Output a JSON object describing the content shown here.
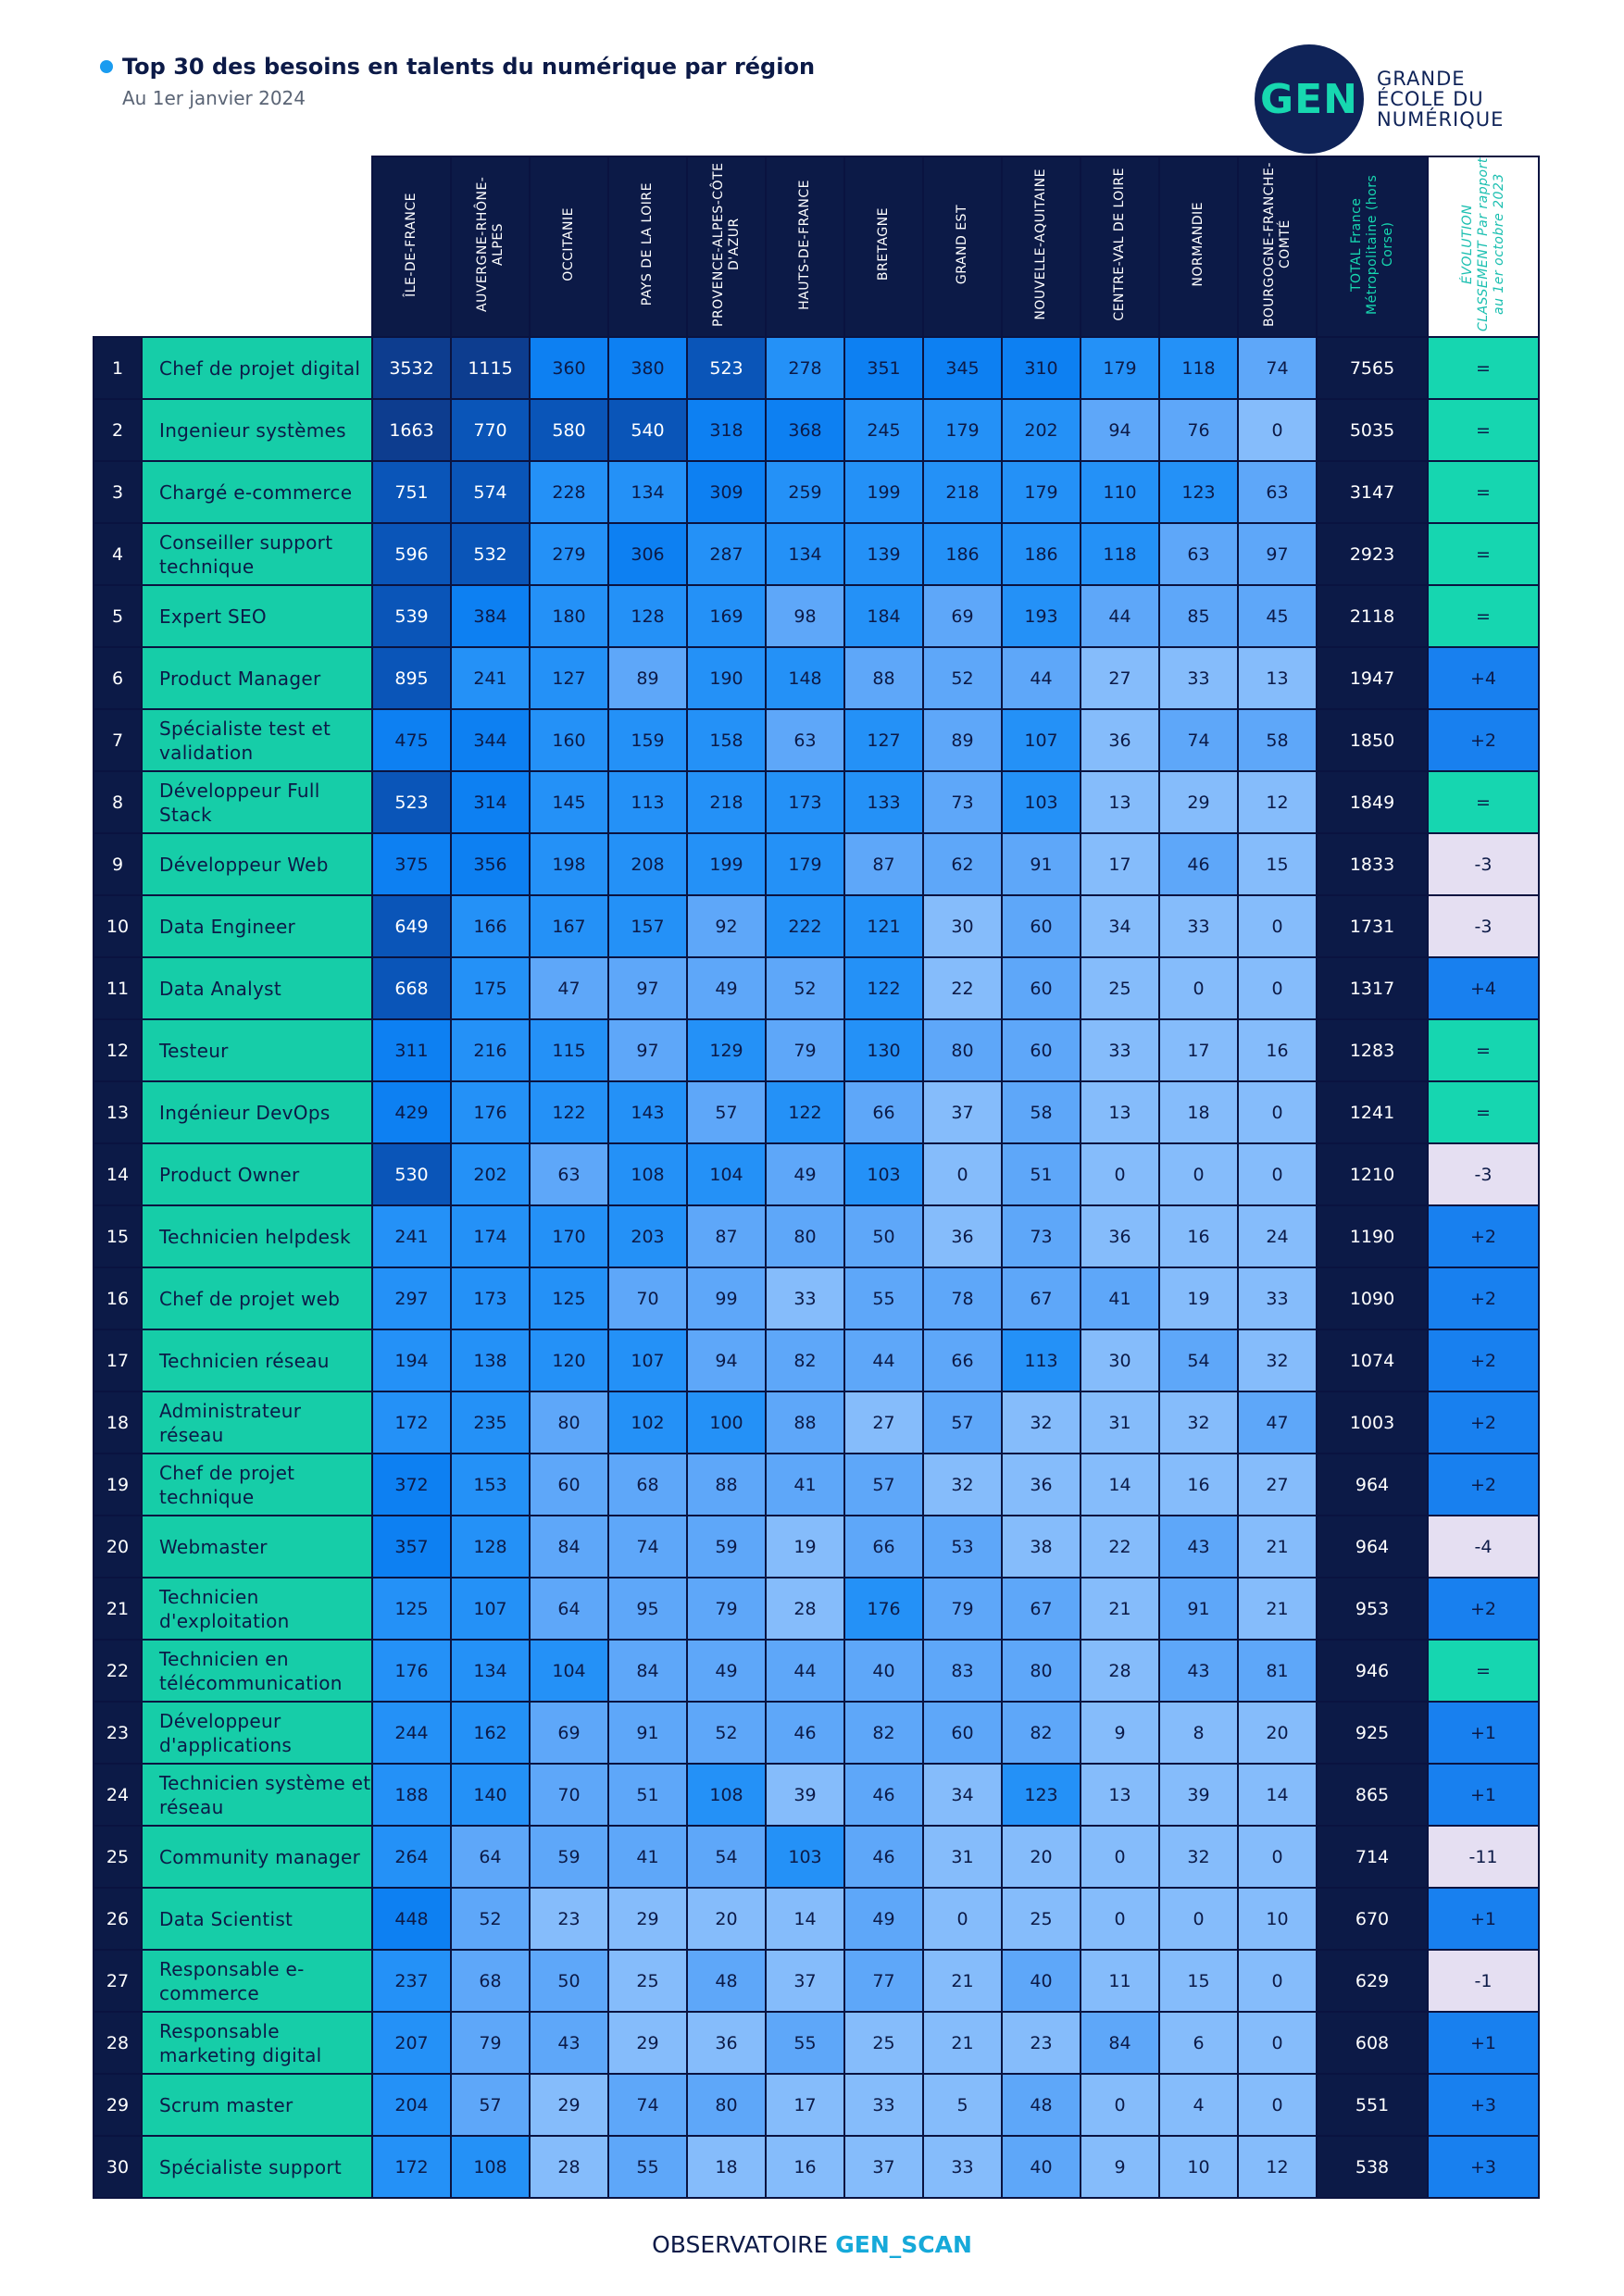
{
  "title": "Top 30 des besoins en talents du numérique par région",
  "subtitle": "Au 1er janvier 2024",
  "logo": {
    "mark": "GEN",
    "line1": "GRANDE",
    "line2": "ÉCOLE DU",
    "line3": "NUMÉRIQUE"
  },
  "columns": [
    "ÎLE-DE-FRANCE",
    "AUVERGNE-RHÔNE-ALPES",
    "OCCITANIE",
    "PAYS DE LA LOIRE",
    "PROVENCE-ALPES-CÔTE D'AZUR",
    "HAUTS-DE-FRANCE",
    "BRETAGNE",
    "GRAND EST",
    "NOUVELLE-AQUITAINE",
    "CENTRE-VAL DE LOIRE",
    "NORMANDIE",
    "BOURGOGNE-FRANCHE-COMTÉ"
  ],
  "total_header": "TOTAL France Métropolitaine (hors Corse)",
  "evolution_header": "ÉVOLUTION CLASSEMENT Par rapport au 1er octobre 2023",
  "rows": [
    {
      "rank": "1",
      "job": "Chef de projet digital",
      "values": [
        3532,
        1115,
        360,
        380,
        523,
        278,
        351,
        345,
        310,
        179,
        118,
        74
      ],
      "total": "7565",
      "evolution": "="
    },
    {
      "rank": "2",
      "job": "Ingenieur systèmes",
      "values": [
        1663,
        770,
        580,
        540,
        318,
        368,
        245,
        179,
        202,
        94,
        76,
        0
      ],
      "total": "5035",
      "evolution": "="
    },
    {
      "rank": "3",
      "job": "Chargé e-commerce",
      "values": [
        751,
        574,
        228,
        134,
        309,
        259,
        199,
        218,
        179,
        110,
        123,
        63
      ],
      "total": "3147",
      "evolution": "="
    },
    {
      "rank": "4",
      "job": "Conseiller support technique",
      "values": [
        596,
        532,
        279,
        306,
        287,
        134,
        139,
        186,
        186,
        118,
        63,
        97
      ],
      "total": "2923",
      "evolution": "="
    },
    {
      "rank": "5",
      "job": "Expert SEO",
      "values": [
        539,
        384,
        180,
        128,
        169,
        98,
        184,
        69,
        193,
        44,
        85,
        45
      ],
      "total": "2118",
      "evolution": "="
    },
    {
      "rank": "6",
      "job": "Product Manager",
      "values": [
        895,
        241,
        127,
        89,
        190,
        148,
        88,
        52,
        44,
        27,
        33,
        13
      ],
      "total": "1947",
      "evolution": "+4"
    },
    {
      "rank": "7",
      "job": "Spécialiste test et validation",
      "values": [
        475,
        344,
        160,
        159,
        158,
        63,
        127,
        89,
        107,
        36,
        74,
        58
      ],
      "total": "1850",
      "evolution": "+2"
    },
    {
      "rank": "8",
      "job": "Développeur Full Stack",
      "values": [
        523,
        314,
        145,
        113,
        218,
        173,
        133,
        73,
        103,
        13,
        29,
        12
      ],
      "total": "1849",
      "evolution": "="
    },
    {
      "rank": "9",
      "job": "Développeur Web",
      "values": [
        375,
        356,
        198,
        208,
        199,
        179,
        87,
        62,
        91,
        17,
        46,
        15
      ],
      "total": "1833",
      "evolution": "-3"
    },
    {
      "rank": "10",
      "job": "Data Engineer",
      "values": [
        649,
        166,
        167,
        157,
        92,
        222,
        121,
        30,
        60,
        34,
        33,
        0
      ],
      "total": "1731",
      "evolution": "-3"
    },
    {
      "rank": "11",
      "job": "Data Analyst",
      "values": [
        668,
        175,
        47,
        97,
        49,
        52,
        122,
        22,
        60,
        25,
        0,
        0
      ],
      "total": "1317",
      "evolution": "+4"
    },
    {
      "rank": "12",
      "job": "Testeur",
      "values": [
        311,
        216,
        115,
        97,
        129,
        79,
        130,
        80,
        60,
        33,
        17,
        16
      ],
      "total": "1283",
      "evolution": "="
    },
    {
      "rank": "13",
      "job": "Ingénieur DevOps",
      "values": [
        429,
        176,
        122,
        143,
        57,
        122,
        66,
        37,
        58,
        13,
        18,
        0
      ],
      "total": "1241",
      "evolution": "="
    },
    {
      "rank": "14",
      "job": "Product Owner",
      "values": [
        530,
        202,
        63,
        108,
        104,
        49,
        103,
        0,
        51,
        0,
        0,
        0
      ],
      "total": "1210",
      "evolution": "-3"
    },
    {
      "rank": "15",
      "job": "Technicien helpdesk",
      "values": [
        241,
        174,
        170,
        203,
        87,
        80,
        50,
        36,
        73,
        36,
        16,
        24
      ],
      "total": "1190",
      "evolution": "+2"
    },
    {
      "rank": "16",
      "job": "Chef de projet web",
      "values": [
        297,
        173,
        125,
        70,
        99,
        33,
        55,
        78,
        67,
        41,
        19,
        33
      ],
      "total": "1090",
      "evolution": "+2"
    },
    {
      "rank": "17",
      "job": "Technicien réseau",
      "values": [
        194,
        138,
        120,
        107,
        94,
        82,
        44,
        66,
        113,
        30,
        54,
        32
      ],
      "total": "1074",
      "evolution": "+2"
    },
    {
      "rank": "18",
      "job": "Administrateur réseau",
      "values": [
        172,
        235,
        80,
        102,
        100,
        88,
        27,
        57,
        32,
        31,
        32,
        47
      ],
      "total": "1003",
      "evolution": "+2"
    },
    {
      "rank": "19",
      "job": "Chef de projet technique",
      "values": [
        372,
        153,
        60,
        68,
        88,
        41,
        57,
        32,
        36,
        14,
        16,
        27
      ],
      "total": "964",
      "evolution": "+2"
    },
    {
      "rank": "20",
      "job": "Webmaster",
      "values": [
        357,
        128,
        84,
        74,
        59,
        19,
        66,
        53,
        38,
        22,
        43,
        21
      ],
      "total": "964",
      "evolution": "-4"
    },
    {
      "rank": "21",
      "job": "Technicien d'exploitation",
      "values": [
        125,
        107,
        64,
        95,
        79,
        28,
        176,
        79,
        67,
        21,
        91,
        21
      ],
      "total": "953",
      "evolution": "+2"
    },
    {
      "rank": "22",
      "job": "Technicien en télécommunication",
      "values": [
        176,
        134,
        104,
        84,
        49,
        44,
        40,
        83,
        80,
        28,
        43,
        81
      ],
      "total": "946",
      "evolution": "="
    },
    {
      "rank": "23",
      "job": "Développeur d'applications",
      "values": [
        244,
        162,
        69,
        91,
        52,
        46,
        82,
        60,
        82,
        9,
        8,
        20
      ],
      "total": "925",
      "evolution": "+1"
    },
    {
      "rank": "24",
      "job": "Technicien système et réseau",
      "values": [
        188,
        140,
        70,
        51,
        108,
        39,
        46,
        34,
        123,
        13,
        39,
        14
      ],
      "total": "865",
      "evolution": "+1"
    },
    {
      "rank": "25",
      "job": "Community manager",
      "values": [
        264,
        64,
        59,
        41,
        54,
        103,
        46,
        31,
        20,
        0,
        32,
        0
      ],
      "total": "714",
      "evolution": "-11"
    },
    {
      "rank": "26",
      "job": "Data Scientist",
      "values": [
        448,
        52,
        23,
        29,
        20,
        14,
        49,
        0,
        25,
        0,
        0,
        10
      ],
      "total": "670",
      "evolution": "+1"
    },
    {
      "rank": "27",
      "job": "Responsable e-commerce",
      "values": [
        237,
        68,
        50,
        25,
        48,
        37,
        77,
        21,
        40,
        11,
        15,
        0
      ],
      "total": "629",
      "evolution": "-1"
    },
    {
      "rank": "28",
      "job": "Responsable marketing digital",
      "values": [
        207,
        79,
        43,
        29,
        36,
        55,
        25,
        21,
        23,
        84,
        6,
        0
      ],
      "total": "608",
      "evolution": "+1"
    },
    {
      "rank": "29",
      "job": "Scrum master",
      "values": [
        204,
        57,
        29,
        74,
        80,
        17,
        33,
        5,
        48,
        0,
        4,
        0
      ],
      "total": "551",
      "evolution": "+3"
    },
    {
      "rank": "30",
      "job": "Spécialiste support",
      "values": [
        172,
        108,
        28,
        55,
        18,
        16,
        37,
        33,
        40,
        9,
        10,
        12
      ],
      "total": "538",
      "evolution": "+3"
    }
  ],
  "footer": {
    "prefix": "OBSERVATOIRE ",
    "brand": "GEN_SCAN"
  }
}
